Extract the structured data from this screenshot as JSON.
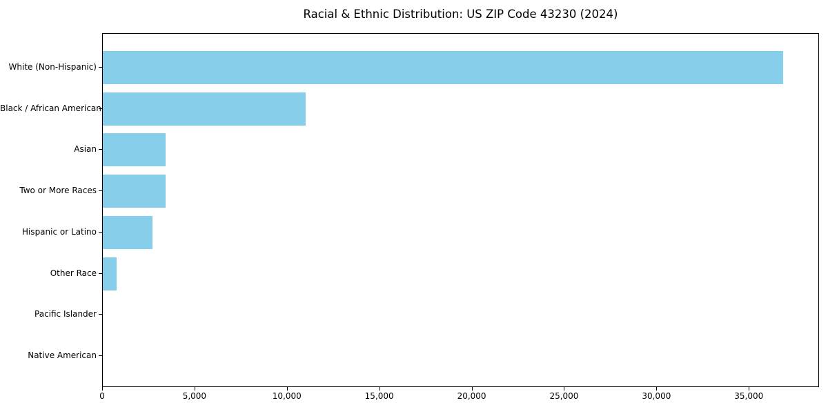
{
  "chart_data": {
    "type": "bar",
    "orientation": "horizontal",
    "title": "Racial & Ethnic Distribution: US ZIP Code 43230 (2024)",
    "categories": [
      "White (Non-Hispanic)",
      "Black / African American",
      "Asian",
      "Two or More Races",
      "Hispanic or Latino",
      "Other Race",
      "Pacific Islander",
      "Native American"
    ],
    "values": [
      36900,
      11000,
      3400,
      3400,
      2680,
      750,
      0,
      0
    ],
    "xlabel": "",
    "ylabel": "",
    "xlim": [
      0,
      38800
    ],
    "xticks": [
      0,
      5000,
      10000,
      15000,
      20000,
      25000,
      30000,
      35000
    ],
    "xtick_labels": [
      "0",
      "5,000",
      "10,000",
      "15,000",
      "20,000",
      "25,000",
      "30,000",
      "35,000"
    ],
    "bar_color": "#87CEEB",
    "grid": false,
    "legend_position": "none",
    "background_color": "#ffffff"
  }
}
